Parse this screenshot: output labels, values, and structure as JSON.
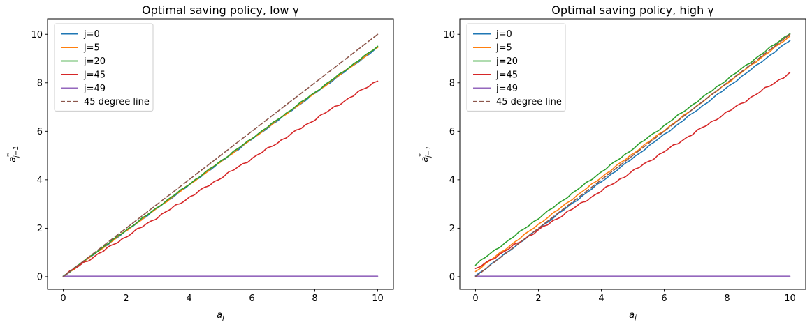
{
  "figure": {
    "background": "#ffffff",
    "text_color": "#000000",
    "spine_color": "#000000"
  },
  "chart_data": [
    {
      "type": "line",
      "title": "Optimal saving policy, low γ",
      "xlabel": {
        "base": "a",
        "sub": "j"
      },
      "ylabel": {
        "base": "a",
        "sup": "*",
        "sub": "j+1"
      },
      "xlim": [
        -0.5,
        10.5
      ],
      "ylim": [
        -0.52,
        10.64
      ],
      "xticks": [
        0,
        2,
        4,
        6,
        8,
        10
      ],
      "yticks": [
        0,
        2,
        4,
        6,
        8,
        10
      ],
      "grid": false,
      "legend_position": "upper left",
      "series": [
        {
          "name": "j=0",
          "color": "#1f77b4",
          "dash": false,
          "x": [
            0,
            10
          ],
          "y": [
            0.0,
            9.45
          ],
          "wiggle": 0.03,
          "seed": 1
        },
        {
          "name": "j=5",
          "color": "#ff7f0e",
          "dash": false,
          "x": [
            0,
            10
          ],
          "y": [
            0.0,
            9.47
          ],
          "wiggle": 0.03,
          "seed": 2
        },
        {
          "name": "j=20",
          "color": "#2ca02c",
          "dash": false,
          "x": [
            0,
            10
          ],
          "y": [
            0.02,
            9.5
          ],
          "wiggle": 0.03,
          "seed": 3
        },
        {
          "name": "j=45",
          "color": "#d62728",
          "dash": false,
          "x": [
            0,
            10
          ],
          "y": [
            0.04,
            8.1
          ],
          "wiggle": 0.05,
          "seed": 4
        },
        {
          "name": "j=49",
          "color": "#9467bd",
          "dash": false,
          "x": [
            0,
            10
          ],
          "y": [
            0.02,
            0.02
          ],
          "wiggle": 0,
          "seed": 5
        },
        {
          "name": "45 degree line",
          "color": "#8c564b",
          "dash": true,
          "x": [
            0,
            10
          ],
          "y": [
            0,
            10
          ],
          "wiggle": 0,
          "seed": 6
        }
      ]
    },
    {
      "type": "line",
      "title": "Optimal saving policy, high γ",
      "xlabel": {
        "base": "a",
        "sub": "j"
      },
      "ylabel": {
        "base": "a",
        "sup": "*",
        "sub": "j+1"
      },
      "xlim": [
        -0.5,
        10.5
      ],
      "ylim": [
        -0.52,
        10.64
      ],
      "xticks": [
        0,
        2,
        4,
        6,
        8,
        10
      ],
      "yticks": [
        0,
        2,
        4,
        6,
        8,
        10
      ],
      "grid": false,
      "legend_position": "upper left",
      "series": [
        {
          "name": "j=0",
          "color": "#1f77b4",
          "dash": false,
          "x": [
            0,
            10
          ],
          "y": [
            0.03,
            9.75
          ],
          "wiggle": 0.03,
          "seed": 7
        },
        {
          "name": "j=5",
          "color": "#ff7f0e",
          "dash": false,
          "x": [
            0,
            10
          ],
          "y": [
            0.22,
            9.92
          ],
          "wiggle": 0.03,
          "seed": 8
        },
        {
          "name": "j=20",
          "color": "#2ca02c",
          "dash": false,
          "x": [
            0,
            10
          ],
          "y": [
            0.5,
            10.05
          ],
          "wiggle": 0.035,
          "seed": 9
        },
        {
          "name": "j=45",
          "color": "#d62728",
          "dash": false,
          "x": [
            0,
            10
          ],
          "y": [
            0.3,
            8.4
          ],
          "wiggle": 0.05,
          "seed": 10
        },
        {
          "name": "j=49",
          "color": "#9467bd",
          "dash": false,
          "x": [
            0,
            10
          ],
          "y": [
            0.02,
            0.02
          ],
          "wiggle": 0,
          "seed": 11
        },
        {
          "name": "45 degree line",
          "color": "#8c564b",
          "dash": true,
          "x": [
            0,
            10
          ],
          "y": [
            0,
            10
          ],
          "wiggle": 0,
          "seed": 12
        }
      ]
    }
  ]
}
